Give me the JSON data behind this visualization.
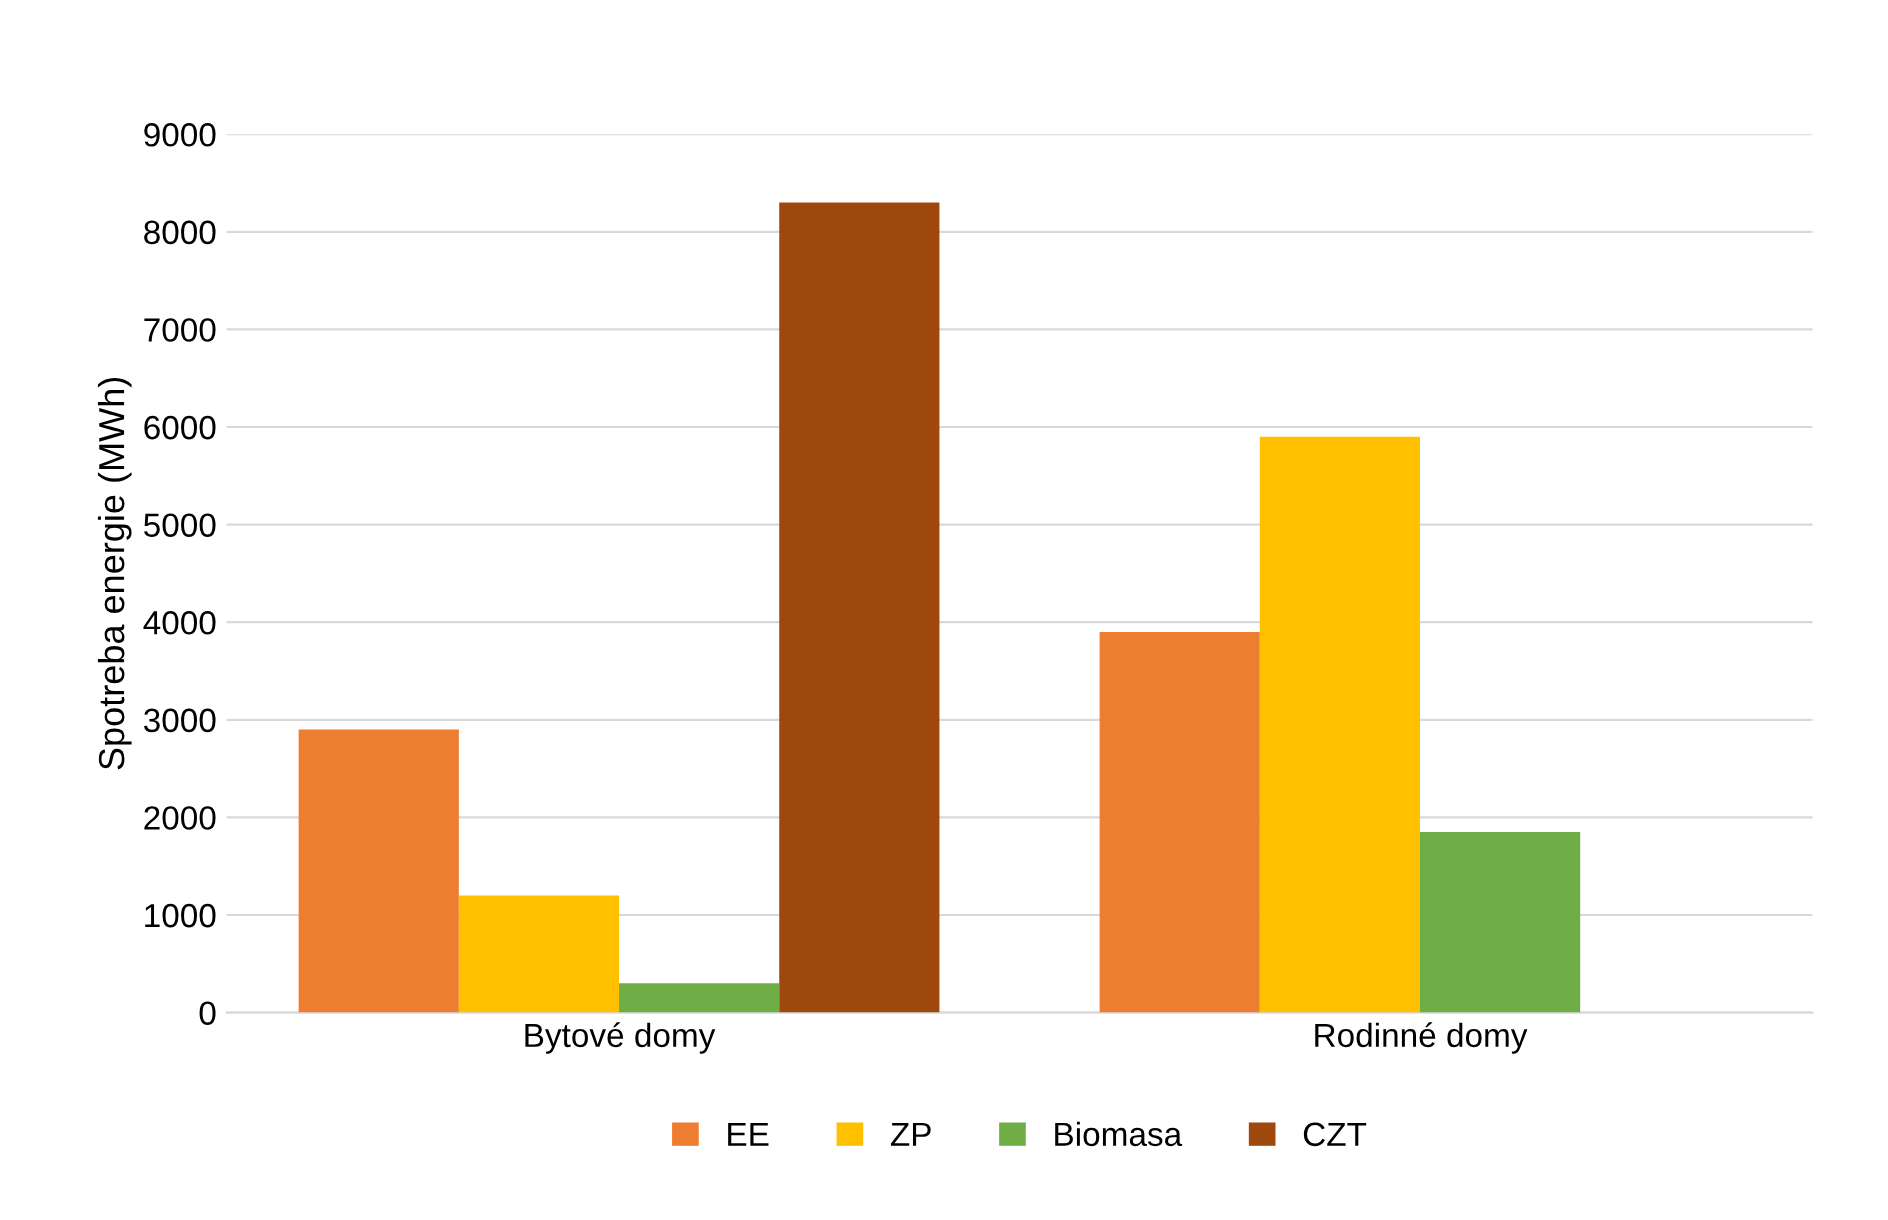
{
  "chart_data": {
    "type": "bar",
    "ylabel": "Spotreba energie (MWh)",
    "categories": [
      "Bytové domy",
      "Rodinné domy"
    ],
    "series": [
      {
        "name": "EE",
        "color": "#ed7d31",
        "values": [
          2900,
          3900
        ]
      },
      {
        "name": "ZP",
        "color": "#ffc000",
        "values": [
          1200,
          5900
        ]
      },
      {
        "name": "Biomasa",
        "color": "#70ad47",
        "values": [
          300,
          1850
        ]
      },
      {
        "name": "CZT",
        "color": "#9e480e",
        "values": [
          8300,
          0
        ]
      }
    ],
    "ylim": [
      0,
      9000
    ],
    "yticks": [
      0,
      1000,
      2000,
      3000,
      4000,
      5000,
      6000,
      7000,
      8000,
      9000
    ],
    "grid": "y",
    "legend": "bottom"
  }
}
